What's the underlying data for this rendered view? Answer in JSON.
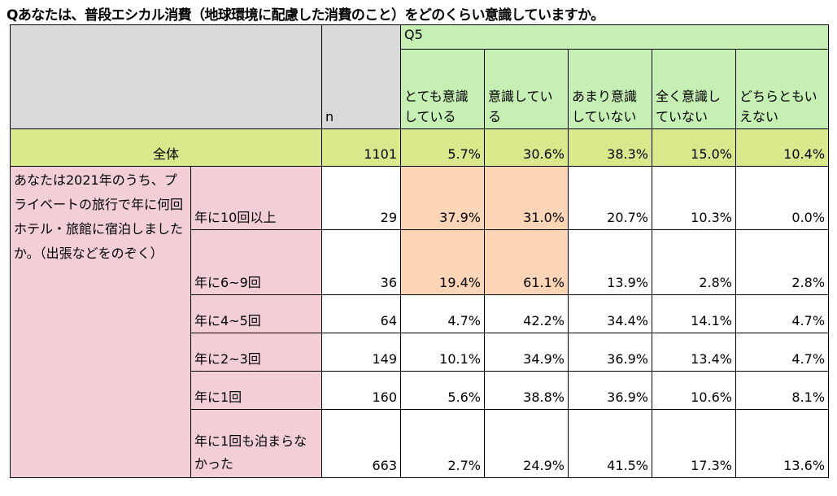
{
  "title": "Qあなたは、普段エシカル消費（地球環境に配慮した消費のこと）をどのくらい意識していますか。",
  "header": {
    "question": "Q5",
    "n_label": "n",
    "columns": [
      "とても意識している",
      "意識している",
      "あまり意識していない",
      "全く意識していない",
      "どちらともいえない"
    ]
  },
  "total": {
    "label": "全体",
    "n": "1101",
    "values": [
      "5.7%",
      "30.6%",
      "38.3%",
      "15.0%",
      "10.4%"
    ]
  },
  "group_label": "あなたは2021年のうち、プライベートの旅行で年に何回ホテル・旅館に宿泊しましたか。（出張などをのぞく）",
  "rows": [
    {
      "label": "年に10回以上",
      "n": "29",
      "values": [
        "37.9%",
        "31.0%",
        "20.7%",
        "10.3%",
        "0.0%"
      ]
    },
    {
      "label": "年に6~9回",
      "n": "36",
      "values": [
        "19.4%",
        "61.1%",
        "13.9%",
        "2.8%",
        "2.8%"
      ]
    },
    {
      "label": "年に4~5回",
      "n": "64",
      "values": [
        "4.7%",
        "42.2%",
        "34.4%",
        "14.1%",
        "4.7%"
      ]
    },
    {
      "label": "年に2~3回",
      "n": "149",
      "values": [
        "10.1%",
        "34.9%",
        "36.9%",
        "13.4%",
        "4.7%"
      ]
    },
    {
      "label": "年に1回",
      "n": "160",
      "values": [
        "5.6%",
        "38.8%",
        "36.9%",
        "10.6%",
        "8.1%"
      ]
    },
    {
      "label": "年に1回も泊まらなかった",
      "n": "663",
      "values": [
        "2.7%",
        "24.9%",
        "41.5%",
        "17.3%",
        "13.6%"
      ]
    }
  ],
  "colors": {
    "header_gray": "#d9d9d9",
    "header_green": "#c6efb4",
    "total_row": "#d9e88a",
    "row_label_pink": "#f2cfd6",
    "highlight": "#fbd5b5"
  }
}
